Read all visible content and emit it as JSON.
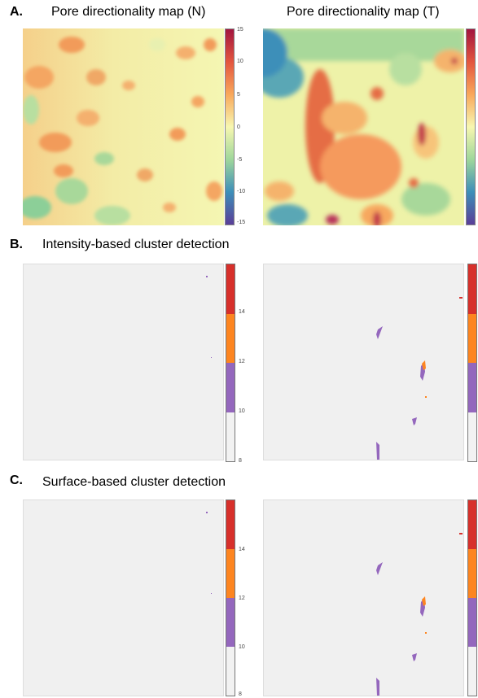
{
  "panels": {
    "a_label": "A.",
    "b_label": "B.",
    "c_label": "C."
  },
  "titles": {
    "map_n": "Pore directionality map (N)",
    "map_t": "Pore directionality map (T)",
    "intensity": "Intensity-based cluster detection",
    "surface": "Surface-based cluster detection"
  },
  "colorbar_ticks": [
    "15",
    "10",
    "5",
    "0",
    "-5",
    "-10",
    "-15"
  ],
  "cluster_ticks": [
    "14",
    "12",
    "10",
    "8"
  ],
  "colors": {
    "red": "#d7302b",
    "orange": "#fd8520",
    "purple": "#9467bd",
    "light": "#f2f2f2",
    "heat_bg": "#f4f3a8"
  }
}
